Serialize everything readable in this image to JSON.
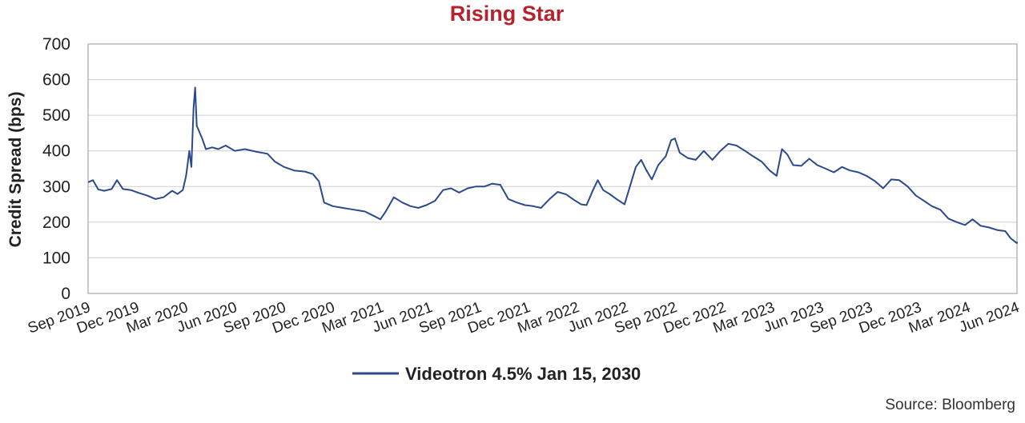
{
  "chart_data": {
    "type": "line",
    "title": "Rising Star",
    "title_color": "#B5232E",
    "ylabel": "Credit Spread (bps)",
    "xlabel": "",
    "ylim": [
      0,
      700
    ],
    "yticks": [
      0,
      100,
      200,
      300,
      400,
      500,
      600,
      700
    ],
    "xlim": [
      "2019-09",
      "2024-06"
    ],
    "xticks": [
      "Sep 2019",
      "Dec 2019",
      "Mar 2020",
      "Jun 2020",
      "Sep 2020",
      "Dec 2020",
      "Mar 2021",
      "Jun 2021",
      "Sep 2021",
      "Dec 2021",
      "Mar 2022",
      "Jun 2022",
      "Sep 2022",
      "Dec 2022",
      "Mar 2023",
      "Jun 2023",
      "Sep 2023",
      "Dec 2023",
      "Mar 2024",
      "Jun 2024"
    ],
    "grid": "horizontal",
    "legend_position": "bottom",
    "source": "Source: Bloomberg",
    "series": [
      {
        "name": "Videotron 4.5% Jan 15, 2030",
        "color": "#2B4A8C",
        "points": [
          [
            "2019-09-01",
            312
          ],
          [
            "2019-09-10",
            318
          ],
          [
            "2019-09-20",
            292
          ],
          [
            "2019-10-01",
            288
          ],
          [
            "2019-10-15",
            293
          ],
          [
            "2019-10-25",
            318
          ],
          [
            "2019-11-05",
            293
          ],
          [
            "2019-11-20",
            290
          ],
          [
            "2019-12-05",
            282
          ],
          [
            "2019-12-20",
            275
          ],
          [
            "2020-01-05",
            265
          ],
          [
            "2020-01-20",
            270
          ],
          [
            "2020-02-05",
            288
          ],
          [
            "2020-02-15",
            279
          ],
          [
            "2020-02-25",
            290
          ],
          [
            "2020-03-02",
            330
          ],
          [
            "2020-03-08",
            400
          ],
          [
            "2020-03-12",
            355
          ],
          [
            "2020-03-16",
            520
          ],
          [
            "2020-03-19",
            578
          ],
          [
            "2020-03-22",
            470
          ],
          [
            "2020-03-25",
            460
          ],
          [
            "2020-04-01",
            435
          ],
          [
            "2020-04-08",
            405
          ],
          [
            "2020-04-20",
            410
          ],
          [
            "2020-05-01",
            405
          ],
          [
            "2020-05-15",
            415
          ],
          [
            "2020-06-01",
            400
          ],
          [
            "2020-06-20",
            405
          ],
          [
            "2020-07-10",
            398
          ],
          [
            "2020-08-01",
            392
          ],
          [
            "2020-08-15",
            370
          ],
          [
            "2020-09-01",
            355
          ],
          [
            "2020-09-20",
            345
          ],
          [
            "2020-10-10",
            342
          ],
          [
            "2020-10-25",
            335
          ],
          [
            "2020-11-05",
            315
          ],
          [
            "2020-11-15",
            255
          ],
          [
            "2020-12-01",
            245
          ],
          [
            "2020-12-20",
            240
          ],
          [
            "2021-01-10",
            235
          ],
          [
            "2021-01-30",
            230
          ],
          [
            "2021-02-15",
            218
          ],
          [
            "2021-02-28",
            208
          ],
          [
            "2021-03-10",
            230
          ],
          [
            "2021-03-25",
            270
          ],
          [
            "2021-04-10",
            255
          ],
          [
            "2021-04-25",
            245
          ],
          [
            "2021-05-10",
            240
          ],
          [
            "2021-05-25",
            248
          ],
          [
            "2021-06-10",
            260
          ],
          [
            "2021-06-25",
            290
          ],
          [
            "2021-07-10",
            295
          ],
          [
            "2021-07-25",
            283
          ],
          [
            "2021-08-10",
            295
          ],
          [
            "2021-08-25",
            300
          ],
          [
            "2021-09-10",
            300
          ],
          [
            "2021-09-25",
            308
          ],
          [
            "2021-10-10",
            305
          ],
          [
            "2021-10-25",
            265
          ],
          [
            "2021-11-10",
            255
          ],
          [
            "2021-11-25",
            248
          ],
          [
            "2021-12-10",
            245
          ],
          [
            "2021-12-25",
            240
          ],
          [
            "2022-01-10",
            265
          ],
          [
            "2022-01-25",
            285
          ],
          [
            "2022-02-10",
            278
          ],
          [
            "2022-02-25",
            262
          ],
          [
            "2022-03-10",
            250
          ],
          [
            "2022-03-20",
            248
          ],
          [
            "2022-04-01",
            290
          ],
          [
            "2022-04-10",
            318
          ],
          [
            "2022-04-20",
            290
          ],
          [
            "2022-05-01",
            280
          ],
          [
            "2022-05-15",
            265
          ],
          [
            "2022-05-30",
            250
          ],
          [
            "2022-06-10",
            305
          ],
          [
            "2022-06-20",
            355
          ],
          [
            "2022-06-30",
            375
          ],
          [
            "2022-07-10",
            345
          ],
          [
            "2022-07-20",
            320
          ],
          [
            "2022-08-01",
            360
          ],
          [
            "2022-08-15",
            385
          ],
          [
            "2022-08-25",
            430
          ],
          [
            "2022-09-01",
            435
          ],
          [
            "2022-09-10",
            395
          ],
          [
            "2022-09-25",
            380
          ],
          [
            "2022-10-10",
            375
          ],
          [
            "2022-10-25",
            400
          ],
          [
            "2022-11-10",
            375
          ],
          [
            "2022-11-25",
            400
          ],
          [
            "2022-12-10",
            420
          ],
          [
            "2022-12-25",
            415
          ],
          [
            "2023-01-10",
            400
          ],
          [
            "2023-01-25",
            385
          ],
          [
            "2023-02-10",
            370
          ],
          [
            "2023-02-25",
            345
          ],
          [
            "2023-03-10",
            330
          ],
          [
            "2023-03-20",
            405
          ],
          [
            "2023-03-30",
            390
          ],
          [
            "2023-04-10",
            360
          ],
          [
            "2023-04-25",
            358
          ],
          [
            "2023-05-10",
            378
          ],
          [
            "2023-05-25",
            360
          ],
          [
            "2023-06-10",
            350
          ],
          [
            "2023-06-25",
            340
          ],
          [
            "2023-07-10",
            355
          ],
          [
            "2023-07-25",
            345
          ],
          [
            "2023-08-10",
            340
          ],
          [
            "2023-08-25",
            330
          ],
          [
            "2023-09-10",
            315
          ],
          [
            "2023-09-25",
            295
          ],
          [
            "2023-10-10",
            320
          ],
          [
            "2023-10-25",
            318
          ],
          [
            "2023-11-10",
            300
          ],
          [
            "2023-11-25",
            275
          ],
          [
            "2023-12-10",
            260
          ],
          [
            "2023-12-25",
            245
          ],
          [
            "2024-01-10",
            235
          ],
          [
            "2024-01-25",
            210
          ],
          [
            "2024-02-10",
            200
          ],
          [
            "2024-02-25",
            192
          ],
          [
            "2024-03-10",
            208
          ],
          [
            "2024-03-25",
            190
          ],
          [
            "2024-04-10",
            185
          ],
          [
            "2024-04-25",
            178
          ],
          [
            "2024-05-10",
            175
          ],
          [
            "2024-05-20",
            155
          ],
          [
            "2024-05-31",
            142
          ],
          [
            "2024-06-15",
            143
          ],
          [
            "2024-06-30",
            140
          ]
        ]
      }
    ]
  }
}
